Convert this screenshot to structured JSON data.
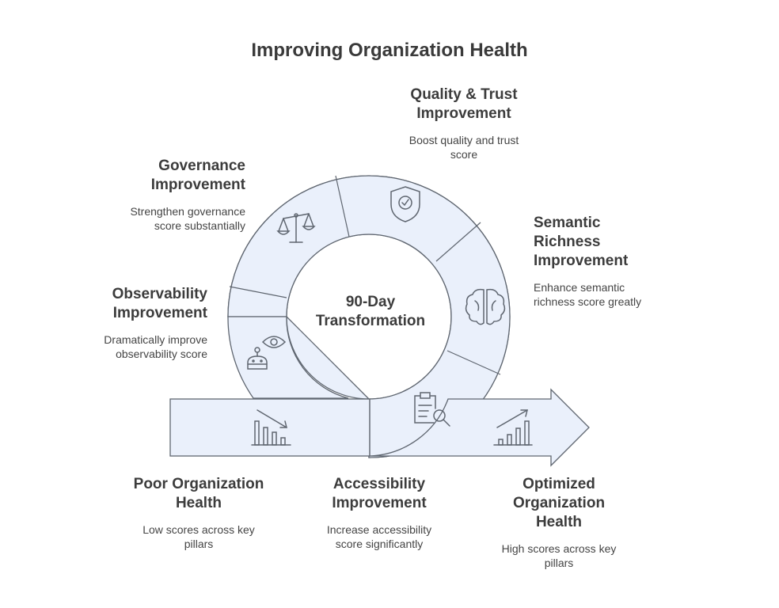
{
  "title": "Improving Organization Health",
  "center_label": "90-Day\nTransformation",
  "colors": {
    "fill": "#eaf0fb",
    "stroke": "#5f6670",
    "text": "#3c3c3c"
  },
  "stages": {
    "poor": {
      "title": "Poor Organization\nHealth",
      "desc": "Low scores across key\npillars",
      "icon": "bar-chart-down-icon"
    },
    "observability": {
      "title": "Observability\nImprovement",
      "desc": "Dramatically improve\nobservability score",
      "icon": "robot-eye-icon"
    },
    "governance": {
      "title": "Governance\nImprovement",
      "desc": "Strengthen governance\nscore substantially",
      "icon": "balance-scale-icon"
    },
    "quality": {
      "title": "Quality & Trust\nImprovement",
      "desc": "Boost quality and trust\nscore",
      "icon": "shield-check-icon"
    },
    "semantic": {
      "title": "Semantic\nRichness\nImprovement",
      "desc": "Enhance semantic\nrichness score greatly",
      "icon": "brain-icon"
    },
    "accessibility": {
      "title": "Accessibility\nImprovement",
      "desc": "Increase accessibility\nscore significantly",
      "icon": "clipboard-search-icon"
    },
    "optimized": {
      "title": "Optimized\nOrganization\nHealth",
      "desc": "High scores across key\npillars",
      "icon": "bar-chart-up-icon"
    }
  }
}
